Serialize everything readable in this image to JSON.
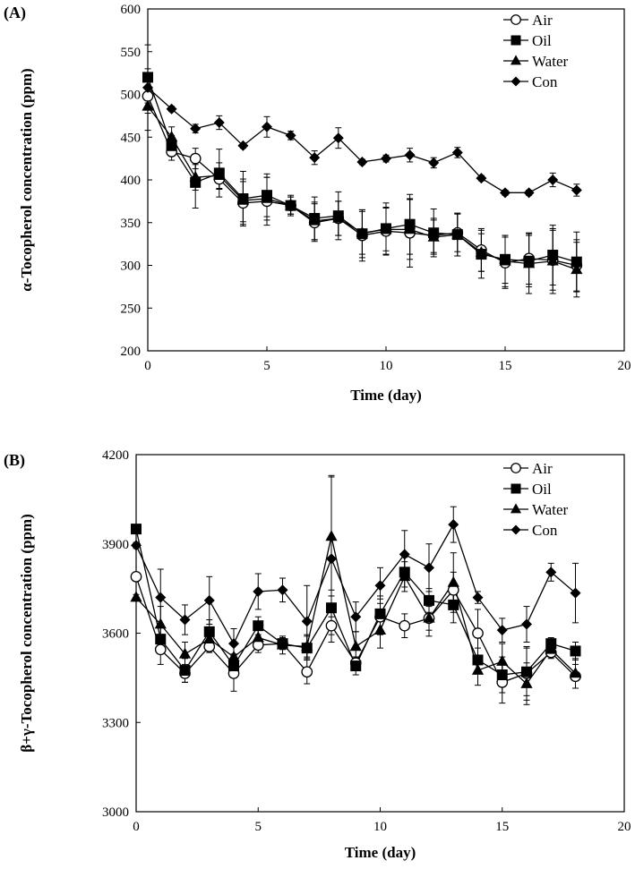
{
  "chart_data": [
    {
      "type": "line",
      "panel_label": "(A)",
      "xlabel": "Time (day)",
      "ylabel": "α-Tocopherol concentration (ppm)",
      "xlim": [
        0,
        20
      ],
      "ylim": [
        200,
        600
      ],
      "xticks": [
        0,
        5,
        10,
        15,
        20
      ],
      "yticks": [
        200,
        250,
        300,
        350,
        400,
        450,
        500,
        550,
        600
      ],
      "legend_position": "top-right",
      "x": [
        0,
        1,
        2,
        3,
        4,
        5,
        6,
        7,
        8,
        9,
        10,
        11,
        12,
        13,
        14,
        15,
        16,
        17,
        18
      ],
      "series": [
        {
          "name": "Air",
          "marker": "open-circle",
          "values": [
            498,
            433,
            425,
            401,
            373,
            375,
            370,
            350,
            355,
            335,
            340,
            338,
            335,
            338,
            318,
            303,
            308,
            306,
            300
          ],
          "err": [
            8,
            10,
            12,
            12,
            25,
            28,
            12,
            22,
            20,
            30,
            28,
            40,
            20,
            22,
            25,
            30,
            30,
            35,
            30
          ]
        },
        {
          "name": "Oil",
          "marker": "square",
          "values": [
            520,
            440,
            397,
            408,
            378,
            382,
            370,
            355,
            358,
            337,
            343,
            348,
            338,
            336,
            313,
            307,
            305,
            312,
            304
          ],
          "err": [
            10,
            12,
            30,
            28,
            32,
            25,
            10,
            25,
            28,
            28,
            30,
            35,
            28,
            25,
            28,
            28,
            30,
            35,
            35
          ]
        },
        {
          "name": "Water",
          "marker": "triangle",
          "values": [
            486,
            450,
            403,
            405,
            376,
            378,
            370,
            352,
            355,
            338,
            342,
            342,
            333,
            336,
            315,
            305,
            302,
            305,
            295
          ],
          "err": [
            8,
            12,
            15,
            15,
            25,
            25,
            10,
            22,
            20,
            25,
            25,
            35,
            20,
            25,
            22,
            30,
            35,
            38,
            32
          ]
        },
        {
          "name": "Con",
          "marker": "diamond",
          "values": [
            508,
            483,
            460,
            467,
            440,
            462,
            452,
            426,
            449,
            421,
            425,
            429,
            420,
            432,
            402,
            385,
            385,
            400,
            388
          ],
          "err": [
            50,
            3,
            5,
            8,
            3,
            12,
            5,
            8,
            12,
            3,
            4,
            8,
            6,
            6,
            3,
            3,
            3,
            8,
            7
          ]
        }
      ]
    },
    {
      "type": "line",
      "panel_label": "(B)",
      "xlabel": "Time (day)",
      "ylabel": "β+γ-Tocopherol concentration (ppm)",
      "xlim": [
        0,
        20
      ],
      "ylim": [
        3000,
        4200
      ],
      "xticks": [
        0,
        5,
        10,
        15,
        20
      ],
      "yticks": [
        3000,
        3300,
        3600,
        3900,
        4200
      ],
      "legend_position": "top-right",
      "x": [
        0,
        1,
        2,
        3,
        4,
        5,
        6,
        7,
        8,
        9,
        10,
        11,
        12,
        13,
        14,
        15,
        16,
        17,
        18
      ],
      "series": [
        {
          "name": "Air",
          "marker": "open-circle",
          "values": [
            3790,
            3545,
            3465,
            3555,
            3465,
            3560,
            3565,
            3470,
            3625,
            3500,
            3655,
            3625,
            3650,
            3745,
            3600,
            3435,
            3465,
            3535,
            3455
          ],
          "err": [
            10,
            50,
            30,
            20,
            60,
            25,
            15,
            40,
            30,
            20,
            60,
            40,
            60,
            60,
            80,
            70,
            90,
            20,
            40
          ]
        },
        {
          "name": "Oil",
          "marker": "square",
          "values": [
            3950,
            3580,
            3475,
            3605,
            3490,
            3625,
            3565,
            3550,
            3685,
            3490,
            3665,
            3805,
            3710,
            3695,
            3510,
            3460,
            3470,
            3565,
            3540
          ],
          "err": [
            10,
            40,
            40,
            40,
            40,
            30,
            20,
            40,
            60,
            30,
            60,
            50,
            40,
            60,
            40,
            60,
            80,
            20,
            30
          ]
        },
        {
          "name": "Water",
          "marker": "triangle",
          "values": [
            3720,
            3630,
            3530,
            3580,
            3520,
            3585,
            3560,
            3555,
            3925,
            3555,
            3610,
            3790,
            3650,
            3770,
            3475,
            3505,
            3430,
            3545,
            3465
          ],
          "err": [
            10,
            60,
            40,
            40,
            40,
            40,
            30,
            40,
            200,
            50,
            60,
            50,
            40,
            100,
            50,
            60,
            70,
            20,
            50
          ]
        },
        {
          "name": "Con",
          "marker": "diamond",
          "values": [
            3895,
            3720,
            3645,
            3710,
            3565,
            3740,
            3745,
            3640,
            3850,
            3655,
            3760,
            3865,
            3820,
            3965,
            3720,
            3610,
            3630,
            3805,
            3735
          ],
          "err": [
            10,
            95,
            50,
            80,
            50,
            60,
            40,
            120,
            280,
            50,
            60,
            80,
            80,
            60,
            20,
            40,
            60,
            30,
            100
          ]
        }
      ]
    }
  ]
}
